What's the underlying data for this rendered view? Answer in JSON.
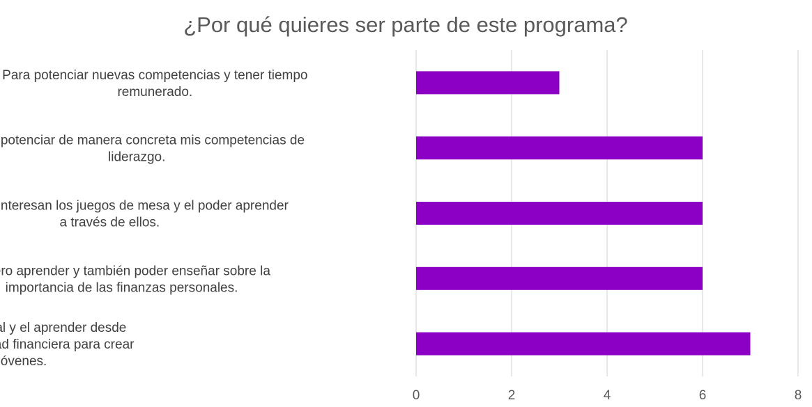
{
  "chart_data": {
    "type": "bar",
    "orientation": "horizontal",
    "title": "¿Por qué quieres ser parte de este programa?",
    "xlabel": "",
    "ylabel": "",
    "xlim": [
      0,
      8
    ],
    "x_ticks": [
      0,
      2,
      4,
      6,
      8
    ],
    "grid": "vertical",
    "legend": "none",
    "categories": [
      [
        "Para potenciar nuevas competencias y tener tiempo",
        "remunerado."
      ],
      [
        "Para potenciar de manera concreta mis competencias de",
        "liderazgo."
      ],
      [
        "Ya que me interesan los juegos de mesa y el poder aprender",
        "a través de ellos."
      ],
      [
        "Quiero aprender  y también poder enseñar sobre la",
        "importancia de las finanzas personales."
      ],
      [
        "Me interesa el área educacional y el aprender desde",
        "pequeño sobre la responsabilidad financiera para crear",
        "hábitos en niños jóvenes."
      ]
    ],
    "values": [
      3,
      6,
      6,
      6,
      7
    ],
    "bar_color": "#8b00c4"
  }
}
